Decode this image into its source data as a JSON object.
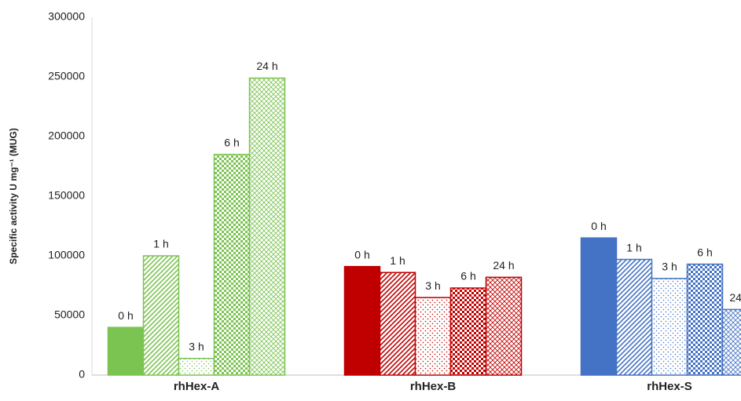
{
  "chart_data": {
    "type": "bar",
    "y_label": "Specific activity U mg⁻¹ (MUG)",
    "categories": [
      "rhHex-A",
      "rhHex-B",
      "rhHex-S"
    ],
    "category_colors": [
      "#7cc452",
      "#c00000",
      "#4472c4"
    ],
    "series": [
      {
        "name": "0 h",
        "pattern": "solid",
        "values": [
          40000,
          91000,
          115000
        ]
      },
      {
        "name": "1 h",
        "pattern": "diagonal",
        "values": [
          100000,
          86000,
          97000
        ]
      },
      {
        "name": "3 h",
        "pattern": "dots",
        "values": [
          14000,
          65000,
          81000
        ]
      },
      {
        "name": "6 h",
        "pattern": "checker",
        "values": [
          185000,
          73000,
          93000
        ]
      },
      {
        "name": "24 h",
        "pattern": "crosshatch",
        "values": [
          249000,
          82000,
          55000
        ]
      }
    ],
    "ylim": [
      0,
      300000
    ],
    "yticks": [
      0,
      50000,
      100000,
      150000,
      200000,
      250000,
      300000
    ],
    "grid": false
  }
}
